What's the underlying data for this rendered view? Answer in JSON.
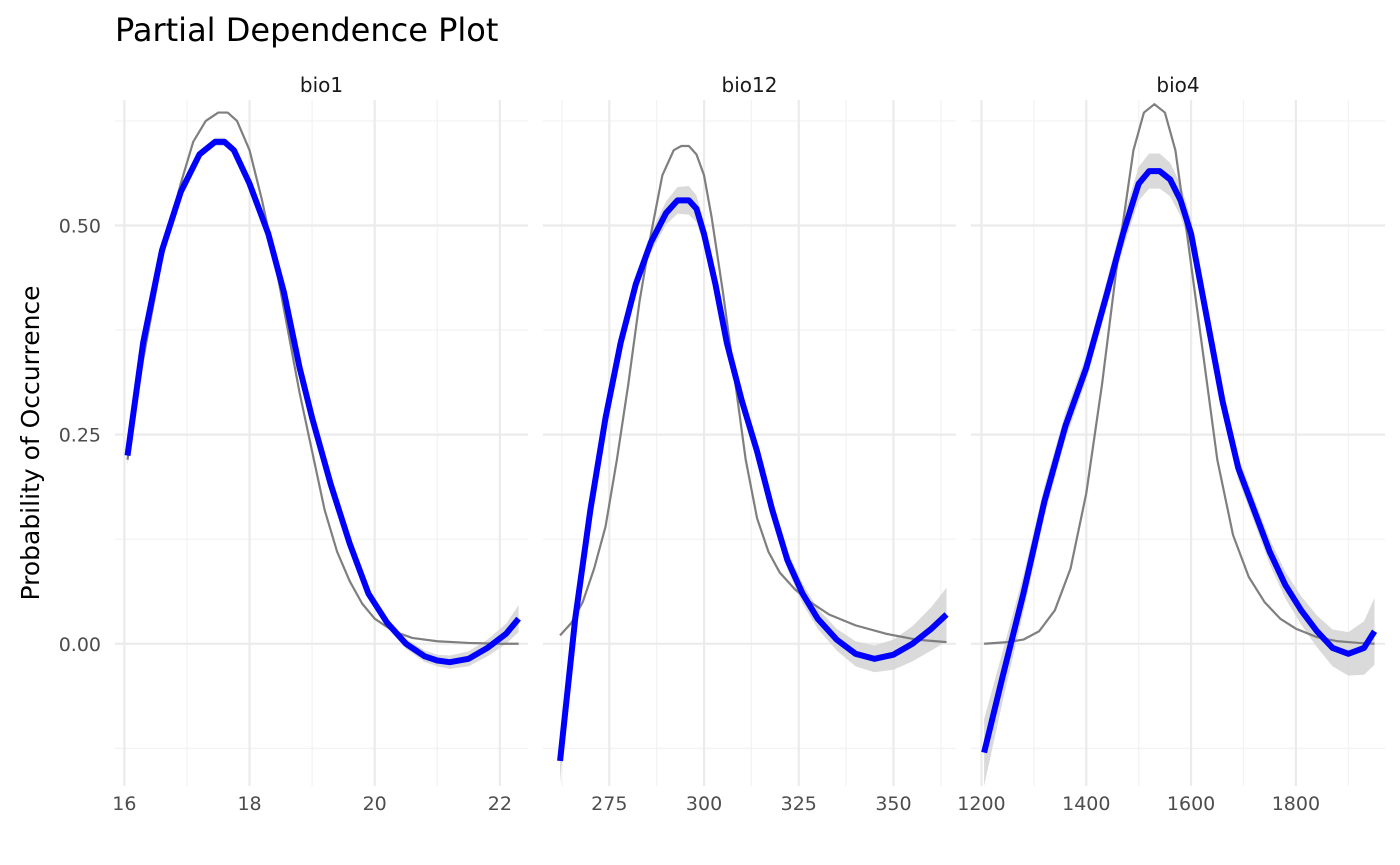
{
  "chart_data": {
    "type": "line",
    "title": "Partial Dependence Plot",
    "ylabel": "Probability of Occurrence",
    "xlabel": "",
    "ylim": [
      -0.17,
      0.65
    ],
    "y_ticks": [
      0.0,
      0.25,
      0.5
    ],
    "y_tick_labels": [
      "0.00",
      "0.25",
      "0.50"
    ],
    "grid": true,
    "legend": "none",
    "colors": {
      "partial": "#7f7f7f",
      "smooth": "#0000ff",
      "band": "#d3d3d3"
    },
    "panels": [
      {
        "name": "bio1",
        "xlim": [
          15.85,
          22.45
        ],
        "x_ticks": [
          16,
          18,
          20,
          22
        ],
        "x_tick_labels": [
          "16",
          "18",
          "20",
          "22"
        ],
        "partial": {
          "x": [
            16.05,
            16.3,
            16.6,
            16.9,
            17.1,
            17.3,
            17.5,
            17.65,
            17.8,
            18.0,
            18.2,
            18.4,
            18.6,
            18.8,
            19.0,
            19.2,
            19.4,
            19.6,
            19.8,
            20.0,
            20.3,
            20.6,
            21.0,
            21.5,
            22.0,
            22.3
          ],
          "y": [
            0.22,
            0.34,
            0.46,
            0.55,
            0.6,
            0.625,
            0.635,
            0.635,
            0.625,
            0.59,
            0.53,
            0.46,
            0.38,
            0.3,
            0.23,
            0.16,
            0.11,
            0.075,
            0.048,
            0.03,
            0.015,
            0.007,
            0.003,
            0.001,
            0.0,
            0.0
          ]
        },
        "smooth": {
          "x": [
            16.05,
            16.3,
            16.6,
            16.9,
            17.2,
            17.45,
            17.6,
            17.75,
            18.0,
            18.3,
            18.55,
            18.8,
            19.0,
            19.3,
            19.6,
            19.9,
            20.2,
            20.5,
            20.8,
            21.0,
            21.2,
            21.5,
            21.8,
            22.1,
            22.3
          ],
          "y": [
            0.225,
            0.36,
            0.47,
            0.54,
            0.585,
            0.6,
            0.6,
            0.59,
            0.55,
            0.49,
            0.42,
            0.33,
            0.27,
            0.19,
            0.12,
            0.06,
            0.025,
            0.0,
            -0.015,
            -0.02,
            -0.022,
            -0.018,
            -0.005,
            0.012,
            0.03
          ]
        },
        "band_halfwidth": [
          0.012,
          0.008,
          0.006,
          0.005,
          0.005,
          0.005,
          0.005,
          0.005,
          0.005,
          0.006,
          0.006,
          0.006,
          0.006,
          0.006,
          0.006,
          0.006,
          0.006,
          0.006,
          0.007,
          0.007,
          0.008,
          0.009,
          0.01,
          0.012,
          0.016
        ]
      },
      {
        "name": "bio12",
        "xlim": [
          257.5,
          366.5
        ],
        "x_ticks": [
          275,
          300,
          325,
          350
        ],
        "x_tick_labels": [
          "275",
          "300",
          "325",
          "350"
        ],
        "partial": {
          "x": [
            262,
            265,
            268,
            271,
            274,
            277,
            280,
            283,
            286,
            289,
            292,
            294,
            296,
            298,
            300,
            302,
            305,
            308,
            311,
            314,
            317,
            320,
            324,
            328,
            333,
            340,
            348,
            356,
            364
          ],
          "y": [
            0.01,
            0.025,
            0.05,
            0.09,
            0.14,
            0.22,
            0.31,
            0.41,
            0.49,
            0.56,
            0.59,
            0.595,
            0.595,
            0.585,
            0.56,
            0.51,
            0.42,
            0.32,
            0.22,
            0.15,
            0.11,
            0.085,
            0.065,
            0.05,
            0.035,
            0.022,
            0.012,
            0.005,
            0.002
          ]
        },
        "smooth": {
          "x": [
            262,
            266,
            270,
            274,
            278,
            282,
            286,
            290,
            293,
            296,
            298,
            300,
            303,
            306,
            310,
            314,
            318,
            322,
            326,
            330,
            335,
            340,
            345,
            350,
            355,
            360,
            364
          ],
          "y": [
            -0.14,
            0.03,
            0.16,
            0.27,
            0.36,
            0.43,
            0.48,
            0.515,
            0.53,
            0.53,
            0.52,
            0.49,
            0.43,
            0.36,
            0.29,
            0.23,
            0.16,
            0.1,
            0.06,
            0.03,
            0.005,
            -0.012,
            -0.018,
            -0.013,
            0.0,
            0.018,
            0.035
          ]
        },
        "band_halfwidth": [
          0.025,
          0.018,
          0.014,
          0.012,
          0.011,
          0.011,
          0.012,
          0.014,
          0.016,
          0.017,
          0.016,
          0.015,
          0.013,
          0.012,
          0.011,
          0.011,
          0.011,
          0.011,
          0.012,
          0.012,
          0.013,
          0.015,
          0.016,
          0.018,
          0.021,
          0.026,
          0.032
        ]
      },
      {
        "name": "bio4",
        "xlim": [
          1180,
          1970
        ],
        "x_ticks": [
          1200,
          1400,
          1600,
          1800
        ],
        "x_tick_labels": [
          "1200",
          "1400",
          "1600",
          "1800"
        ],
        "partial": {
          "x": [
            1205,
            1250,
            1280,
            1310,
            1340,
            1370,
            1400,
            1430,
            1460,
            1490,
            1510,
            1530,
            1550,
            1570,
            1590,
            1620,
            1650,
            1680,
            1710,
            1740,
            1770,
            1800,
            1840,
            1880,
            1920,
            1950
          ],
          "y": [
            0.0,
            0.002,
            0.005,
            0.015,
            0.04,
            0.09,
            0.18,
            0.31,
            0.46,
            0.59,
            0.635,
            0.645,
            0.635,
            0.59,
            0.5,
            0.36,
            0.22,
            0.13,
            0.08,
            0.05,
            0.03,
            0.018,
            0.008,
            0.003,
            0.001,
            0.0
          ]
        },
        "smooth": {
          "x": [
            1205,
            1240,
            1280,
            1320,
            1360,
            1400,
            1440,
            1470,
            1500,
            1520,
            1540,
            1560,
            1580,
            1600,
            1630,
            1660,
            1690,
            1720,
            1750,
            1780,
            1810,
            1840,
            1870,
            1900,
            1930,
            1950
          ],
          "y": [
            -0.13,
            -0.04,
            0.06,
            0.17,
            0.26,
            0.33,
            0.42,
            0.49,
            0.55,
            0.565,
            0.565,
            0.555,
            0.53,
            0.49,
            0.39,
            0.29,
            0.21,
            0.16,
            0.11,
            0.07,
            0.04,
            0.015,
            -0.005,
            -0.012,
            -0.005,
            0.015
          ]
        },
        "band_halfwidth": [
          0.04,
          0.03,
          0.022,
          0.018,
          0.016,
          0.015,
          0.016,
          0.018,
          0.02,
          0.021,
          0.021,
          0.02,
          0.019,
          0.017,
          0.015,
          0.014,
          0.014,
          0.014,
          0.015,
          0.016,
          0.017,
          0.019,
          0.022,
          0.026,
          0.032,
          0.04
        ]
      }
    ]
  }
}
